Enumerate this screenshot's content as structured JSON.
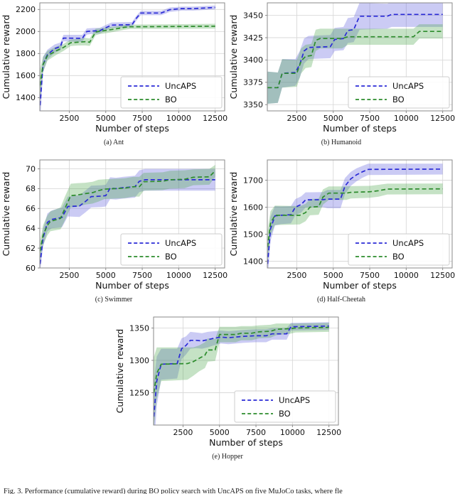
{
  "figure": {
    "caption": "Fig. 3.   Performance (cumulative reward) during BO policy search with UncAPS on five MuJoCo tasks, where fle",
    "legend_labels": [
      "UncAPS",
      "BO"
    ],
    "colors": {
      "uncaps_line": "#2a2ad6",
      "uncaps_band": "#6060dd",
      "bo_line": "#2d8c2d",
      "bo_band": "#4fa64f",
      "grid": "#d9d9d9",
      "spine": "#8a8a8a",
      "text": "#111111"
    }
  },
  "chart_data": [
    {
      "type": "line",
      "key": "ant",
      "caption": "(a) Ant",
      "name": "Ant",
      "xlabel": "Number of steps",
      "ylabel": "Cumulative reward",
      "xlim": [
        480,
        13150
      ],
      "ylim": [
        1280,
        2260
      ],
      "xticks": [
        2500,
        5000,
        7500,
        10000,
        12500
      ],
      "yticks": [
        1400,
        1600,
        1800,
        2000,
        2200
      ],
      "grid": true,
      "legend_position": "lower right",
      "series": [
        {
          "name": "UncAPS",
          "color": "uncaps",
          "x": [
            500,
            700,
            1000,
            1500,
            1900,
            2100,
            3400,
            3700,
            4100,
            4600,
            5100,
            5400,
            6800,
            7100,
            7400,
            8800,
            9400,
            10200,
            11000,
            12500
          ],
          "mean": [
            1330,
            1700,
            1790,
            1845,
            1865,
            1940,
            1938,
            2000,
            2005,
            2008,
            2040,
            2058,
            2062,
            2120,
            2168,
            2168,
            2198,
            2208,
            2208,
            2218
          ],
          "delta": [
            160,
            70,
            45,
            38,
            35,
            30,
            32,
            28,
            26,
            26,
            25,
            24,
            24,
            22,
            20,
            20,
            20,
            18,
            18,
            18
          ]
        },
        {
          "name": "BO",
          "color": "bo",
          "x": [
            500,
            700,
            1000,
            1600,
            2100,
            2600,
            3100,
            3600,
            3900,
            4300,
            4600,
            5000,
            5600,
            6300,
            6700,
            12500
          ],
          "mean": [
            1510,
            1700,
            1780,
            1825,
            1855,
            1898,
            1903,
            1908,
            1903,
            1995,
            2003,
            2010,
            2022,
            2038,
            2043,
            2048
          ],
          "delta": [
            150,
            70,
            45,
            38,
            32,
            30,
            30,
            34,
            34,
            30,
            26,
            25,
            24,
            22,
            20,
            22
          ]
        }
      ]
    },
    {
      "type": "line",
      "key": "humanoid",
      "caption": "(b) Humanoid",
      "name": "Humanoid",
      "xlabel": "Number of steps",
      "ylabel": "Cumulative reward",
      "xlim": [
        480,
        13150
      ],
      "ylim": [
        3343,
        3464
      ],
      "xticks": [
        2500,
        5000,
        7500,
        10000,
        12500
      ],
      "yticks": [
        3350,
        3375,
        3400,
        3425,
        3450
      ],
      "grid": true,
      "legend_position": "lower right",
      "series": [
        {
          "name": "UncAPS",
          "color": "uncaps",
          "x": [
            500,
            1200,
            1500,
            2400,
            2700,
            3000,
            3300,
            4800,
            5100,
            5700,
            6000,
            6400,
            6800,
            8700,
            9000,
            12500
          ],
          "mean": [
            3369,
            3369,
            3385,
            3386,
            3395,
            3410,
            3414,
            3415,
            3423,
            3424,
            3433,
            3434,
            3449,
            3449,
            3451,
            3451
          ],
          "delta": [
            18,
            17,
            16,
            15,
            15,
            14,
            13,
            13,
            13,
            13,
            14,
            14,
            15,
            14,
            14,
            14
          ]
        },
        {
          "name": "BO",
          "color": "bo",
          "x": [
            500,
            1200,
            1500,
            2500,
            2800,
            3100,
            3500,
            3800,
            4100,
            5600,
            6000,
            10500,
            10900,
            12500
          ],
          "mean": [
            3369,
            3369,
            3385,
            3385,
            3399,
            3404,
            3405,
            3422,
            3424,
            3424,
            3426,
            3426,
            3432,
            3432
          ],
          "delta": [
            18,
            17,
            16,
            15,
            14,
            13,
            13,
            12,
            11,
            11,
            9,
            9,
            8,
            8
          ]
        }
      ]
    },
    {
      "type": "line",
      "key": "swimmer",
      "caption": "(c) Swimmer",
      "name": "Swimmer",
      "xlabel": "Number of steps",
      "ylabel": "Cumulative reward",
      "xlim": [
        480,
        13150
      ],
      "ylim": [
        60,
        70.9
      ],
      "xticks": [
        2500,
        5000,
        7500,
        10000,
        12500
      ],
      "yticks": [
        60,
        62,
        64,
        66,
        68,
        70
      ],
      "grid": true,
      "legend_position": "lower right",
      "series": [
        {
          "name": "UncAPS",
          "color": "uncaps",
          "x": [
            500,
            700,
            1000,
            1300,
            2000,
            2400,
            3200,
            3600,
            4000,
            4700,
            5000,
            5300,
            5700,
            6200,
            7000,
            7300,
            7700,
            12500
          ],
          "mean": [
            60.4,
            63.0,
            64.6,
            64.9,
            65.1,
            66.2,
            66.25,
            66.7,
            67.2,
            67.25,
            67.3,
            68.05,
            68.0,
            68.1,
            68.2,
            68.75,
            68.9,
            68.9
          ],
          "delta": [
            0.8,
            0.9,
            0.9,
            0.9,
            1.0,
            1.0,
            1.1,
            1.1,
            1.1,
            1.1,
            1.1,
            1.1,
            1.1,
            1.1,
            1.1,
            1.1,
            1.1,
            1.1
          ]
        },
        {
          "name": "BO",
          "color": "bo",
          "x": [
            500,
            700,
            1000,
            1200,
            1900,
            2200,
            2600,
            3000,
            3600,
            4100,
            4500,
            4900,
            6300,
            6900,
            7300,
            7600,
            8900,
            9400,
            10400,
            11000,
            12100,
            12500
          ],
          "mean": [
            61.7,
            63.3,
            64.3,
            64.7,
            65.0,
            66.0,
            67.3,
            67.35,
            67.5,
            67.6,
            67.8,
            67.95,
            68.05,
            68.2,
            68.2,
            68.7,
            68.75,
            68.9,
            68.95,
            69.15,
            69.2,
            69.8
          ],
          "delta": [
            1.0,
            1.0,
            1.0,
            1.0,
            1.1,
            1.2,
            1.2,
            1.2,
            1.1,
            1.1,
            1.1,
            1.0,
            1.0,
            1.0,
            1.0,
            0.9,
            0.9,
            0.9,
            0.9,
            0.8,
            0.8,
            0.6
          ]
        }
      ]
    },
    {
      "type": "line",
      "key": "half-cheetah",
      "caption": "(d) Half-Cheetah",
      "name": "Half-Cheetah",
      "xlabel": "Number of steps",
      "ylabel": "Cumulative reward",
      "xlim": [
        480,
        13150
      ],
      "ylim": [
        1375,
        1775
      ],
      "xticks": [
        2500,
        5000,
        7500,
        10000,
        12500
      ],
      "yticks": [
        1400,
        1500,
        1600,
        1700
      ],
      "grid": true,
      "legend_position": "lower right",
      "series": [
        {
          "name": "UncAPS",
          "color": "uncaps",
          "x": [
            500,
            700,
            1000,
            1400,
            2100,
            2400,
            2800,
            3100,
            4300,
            4600,
            5500,
            5800,
            6200,
            6600,
            7000,
            7400,
            12500
          ],
          "mean": [
            1390,
            1520,
            1568,
            1570,
            1572,
            1600,
            1610,
            1627,
            1628,
            1630,
            1630,
            1678,
            1705,
            1720,
            1731,
            1740,
            1741
          ],
          "delta": [
            60,
            45,
            36,
            33,
            32,
            30,
            30,
            28,
            28,
            34,
            34,
            30,
            26,
            24,
            22,
            21,
            20
          ]
        },
        {
          "name": "BO",
          "color": "bo",
          "x": [
            500,
            700,
            1000,
            2700,
            3100,
            3400,
            4000,
            4300,
            4700,
            5900,
            6200,
            7500,
            8100,
            8700,
            12500
          ],
          "mean": [
            1452,
            1540,
            1570,
            1570,
            1580,
            1600,
            1602,
            1638,
            1652,
            1652,
            1655,
            1657,
            1661,
            1667,
            1668
          ],
          "delta": [
            60,
            45,
            36,
            34,
            32,
            30,
            30,
            28,
            25,
            25,
            23,
            22,
            22,
            20,
            20
          ]
        }
      ]
    },
    {
      "type": "line",
      "key": "hopper",
      "caption": "(e) Hopper",
      "name": "Hopper",
      "xlabel": "Number of steps",
      "ylabel": "Cumulative reward",
      "xlim": [
        480,
        13150
      ],
      "ylim": [
        1200,
        1367
      ],
      "xticks": [
        2500,
        5000,
        7500,
        10000,
        12500
      ],
      "yticks": [
        1250,
        1300,
        1350
      ],
      "grid": true,
      "legend_position": "lower right",
      "series": [
        {
          "name": "UncAPS",
          "color": "uncaps",
          "x": [
            500,
            700,
            1000,
            2100,
            2400,
            2700,
            3000,
            3400,
            3800,
            4200,
            4600,
            5100,
            5600,
            6600,
            7400,
            8200,
            8600,
            9600,
            9900,
            12500
          ],
          "mean": [
            1213,
            1268,
            1294,
            1295,
            1318,
            1323,
            1331,
            1331,
            1330,
            1332,
            1334,
            1336,
            1335,
            1337,
            1338,
            1338,
            1341,
            1341,
            1352,
            1353
          ],
          "delta": [
            55,
            38,
            24,
            23,
            16,
            14,
            13,
            12,
            12,
            12,
            11,
            10,
            10,
            10,
            10,
            10,
            9,
            9,
            6,
            6
          ]
        },
        {
          "name": "BO",
          "color": "bo",
          "x": [
            500,
            700,
            1000,
            2800,
            3200,
            3600,
            4000,
            4200,
            4700,
            5000,
            6100,
            6500,
            7200,
            7700,
            8500,
            8900,
            9800,
            10200,
            12500
          ],
          "mean": [
            1250,
            1280,
            1294,
            1295,
            1298,
            1303,
            1308,
            1316,
            1316,
            1340,
            1340,
            1342,
            1342,
            1344,
            1345,
            1348,
            1349,
            1350,
            1351
          ],
          "delta": [
            55,
            40,
            26,
            25,
            22,
            20,
            20,
            18,
            17,
            12,
            12,
            11,
            11,
            10,
            10,
            9,
            8,
            7,
            7
          ]
        }
      ]
    }
  ]
}
